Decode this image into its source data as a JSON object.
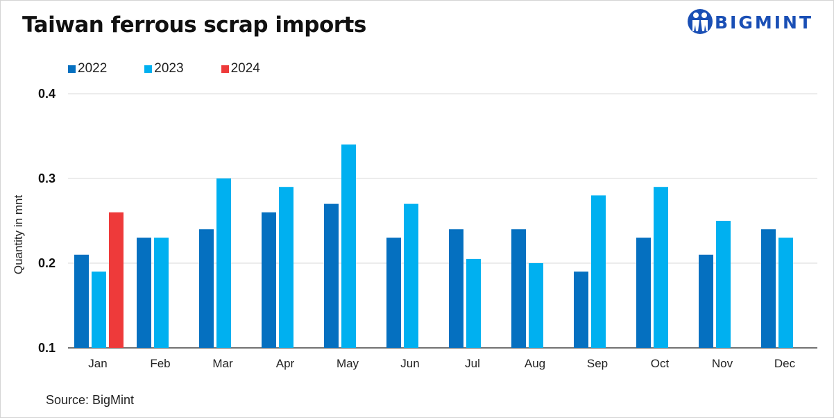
{
  "header": {
    "title": "Taiwan ferrous scrap imports"
  },
  "logo": {
    "text": "BIGMINT",
    "color": "#1a4fb5",
    "icon": "people-logo-icon"
  },
  "footer": {
    "source": "Source: BigMint"
  },
  "chart_data": {
    "type": "bar",
    "title": "Taiwan ferrous scrap imports",
    "ylabel": "Quantity in mnt",
    "xlabel": "",
    "ylim": [
      0.1,
      0.4
    ],
    "yticks": [
      "0.1",
      "0.2",
      "0.3",
      "0.4"
    ],
    "grid": true,
    "legend_position": "top-left",
    "categories": [
      "Jan",
      "Feb",
      "Mar",
      "Apr",
      "May",
      "Jun",
      "Jul",
      "Aug",
      "Sep",
      "Oct",
      "Nov",
      "Dec"
    ],
    "series": [
      {
        "name": "2022",
        "color": "#0570c0",
        "values": [
          0.21,
          0.23,
          0.24,
          0.26,
          0.27,
          0.23,
          0.24,
          0.24,
          0.19,
          0.23,
          0.21,
          0.24
        ]
      },
      {
        "name": "2023",
        "color": "#00b0f0",
        "values": [
          0.19,
          0.23,
          0.3,
          0.29,
          0.34,
          0.27,
          0.205,
          0.2,
          0.28,
          0.29,
          0.25,
          0.23
        ]
      },
      {
        "name": "2024",
        "color": "#ee3a3a",
        "values": [
          0.26,
          null,
          null,
          null,
          null,
          null,
          null,
          null,
          null,
          null,
          null,
          null
        ]
      }
    ]
  }
}
